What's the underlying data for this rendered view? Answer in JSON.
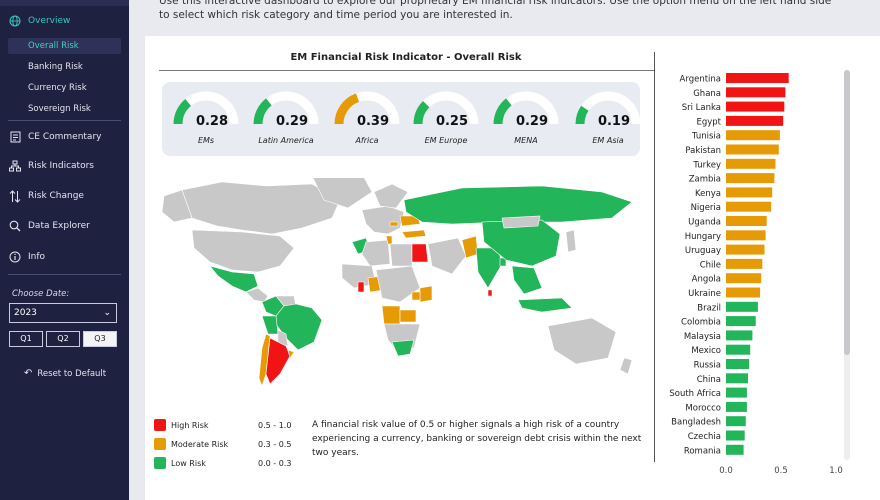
{
  "intro_text": "Use this interactive dashboard to explore our proprietary EM financial risk indicators. Use the option menu on the left hand side to select which risk category and time period you are interested in.",
  "sidebar": {
    "overview_label": "Overview",
    "sub_items": [
      {
        "label": "Overall Risk",
        "active": true
      },
      {
        "label": "Banking Risk",
        "active": false
      },
      {
        "label": "Currency Risk",
        "active": false
      },
      {
        "label": "Sovereign Risk",
        "active": false
      }
    ],
    "nav_items": [
      {
        "label": "CE Commentary",
        "icon": "document-icon"
      },
      {
        "label": "Risk Indicators",
        "icon": "hierarchy-icon"
      },
      {
        "label": "Risk Change",
        "icon": "arrows-updown-icon"
      },
      {
        "label": "Data Explorer",
        "icon": "search-icon"
      },
      {
        "label": "Info",
        "icon": "info-icon"
      }
    ],
    "choose_date_label": "Choose Date:",
    "year_value": "2023",
    "quarters": [
      {
        "label": "Q1",
        "selected": false
      },
      {
        "label": "Q2",
        "selected": false
      },
      {
        "label": "Q3",
        "selected": true
      }
    ],
    "reset_label": "Reset to Default"
  },
  "map_title": "EM Financial Risk Indicator - Overall Risk",
  "gauges": [
    {
      "value": "0.28",
      "label": "EMs",
      "level": 0.28,
      "color": "#22b55a"
    },
    {
      "value": "0.29",
      "label": "Latin America",
      "level": 0.29,
      "color": "#22b55a"
    },
    {
      "value": "0.39",
      "label": "Africa",
      "level": 0.39,
      "color": "#e69b06"
    },
    {
      "value": "0.25",
      "label": "EM Europe",
      "level": 0.25,
      "color": "#22b55a"
    },
    {
      "value": "0.29",
      "label": "MENA",
      "level": 0.29,
      "color": "#22b55a"
    },
    {
      "value": "0.19",
      "label": "EM Asia",
      "level": 0.19,
      "color": "#22b55a"
    }
  ],
  "legend": [
    {
      "label": "High Risk",
      "range": "0.5 - 1.0",
      "color": "#f01414"
    },
    {
      "label": "Moderate Risk",
      "range": "0.3 - 0.5",
      "color": "#e69b06"
    },
    {
      "label": "Low Risk",
      "range": "0.0 - 0.3",
      "color": "#22b55a"
    }
  ],
  "legend_note": "A financial risk value of 0.5 or higher signals a high risk of a country experiencing a currency, banking or sovereign debt crisis within the next two years.",
  "colors": {
    "high": "#f01414",
    "moderate": "#e69b06",
    "low": "#22b55a",
    "sidebar": "#1f2140",
    "accent": "#3fd3c4"
  },
  "chart_data": {
    "type": "bar",
    "orientation": "horizontal",
    "categories": [
      "Argentina",
      "Ghana",
      "Sri Lanka",
      "Egypt",
      "Tunisia",
      "Pakistan",
      "Turkey",
      "Zambia",
      "Kenya",
      "Nigeria",
      "Uganda",
      "Hungary",
      "Uruguay",
      "Chile",
      "Angola",
      "Ukraine",
      "Brazil",
      "Colombia",
      "Malaysia",
      "Mexico",
      "Russia",
      "China",
      "South Africa",
      "Morocco",
      "Bangladesh",
      "Czechia",
      "Romania"
    ],
    "values": [
      0.57,
      0.54,
      0.53,
      0.52,
      0.49,
      0.48,
      0.45,
      0.44,
      0.42,
      0.41,
      0.37,
      0.36,
      0.35,
      0.33,
      0.32,
      0.31,
      0.29,
      0.27,
      0.24,
      0.22,
      0.21,
      0.2,
      0.19,
      0.19,
      0.18,
      0.17,
      0.16
    ],
    "xlim": [
      0,
      1.0
    ],
    "x_ticks": [
      "0.0",
      "0.5",
      "1.0"
    ],
    "thresholds": {
      "high": 0.5,
      "moderate": 0.3
    }
  }
}
